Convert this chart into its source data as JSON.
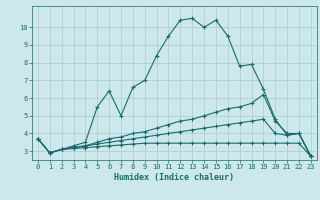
{
  "title": "",
  "xlabel": "Humidex (Indice chaleur)",
  "bg_color": "#cce8ec",
  "grid_color": "#aacccc",
  "line_color": "#1a6b6b",
  "xlim": [
    -0.5,
    23.5
  ],
  "ylim": [
    2.5,
    11.2
  ],
  "yticks": [
    3,
    4,
    5,
    6,
    7,
    8,
    9,
    10
  ],
  "xticks": [
    0,
    1,
    2,
    3,
    4,
    5,
    6,
    7,
    8,
    9,
    10,
    11,
    12,
    13,
    14,
    15,
    16,
    17,
    18,
    19,
    20,
    21,
    22,
    23
  ],
  "series": [
    {
      "x": [
        0,
        1,
        2,
        3,
        4,
        5,
        6,
        7,
        8,
        9,
        10,
        11,
        12,
        13,
        14,
        15,
        16,
        17,
        18,
        19,
        20,
        21,
        22,
        23
      ],
      "y": [
        3.7,
        2.9,
        3.1,
        3.3,
        3.5,
        5.5,
        6.4,
        5.0,
        6.6,
        7.0,
        8.4,
        9.5,
        10.4,
        10.5,
        10.0,
        10.4,
        9.5,
        7.8,
        7.9,
        6.5,
        4.8,
        3.9,
        4.0,
        2.7
      ]
    },
    {
      "x": [
        0,
        1,
        2,
        3,
        4,
        5,
        6,
        7,
        8,
        9,
        10,
        11,
        12,
        13,
        14,
        15,
        16,
        17,
        18,
        19,
        20,
        21,
        22,
        23
      ],
      "y": [
        3.7,
        2.9,
        3.1,
        3.2,
        3.3,
        3.5,
        3.7,
        3.8,
        4.0,
        4.1,
        4.3,
        4.5,
        4.7,
        4.8,
        5.0,
        5.2,
        5.4,
        5.5,
        5.7,
        6.2,
        4.7,
        4.0,
        4.0,
        2.7
      ]
    },
    {
      "x": [
        0,
        1,
        2,
        3,
        4,
        5,
        6,
        7,
        8,
        9,
        10,
        11,
        12,
        13,
        14,
        15,
        16,
        17,
        18,
        19,
        20,
        21,
        22,
        23
      ],
      "y": [
        3.7,
        2.9,
        3.1,
        3.2,
        3.3,
        3.4,
        3.5,
        3.6,
        3.7,
        3.8,
        3.9,
        4.0,
        4.1,
        4.2,
        4.3,
        4.4,
        4.5,
        4.6,
        4.7,
        4.8,
        4.0,
        3.9,
        4.0,
        2.7
      ]
    },
    {
      "x": [
        0,
        1,
        2,
        3,
        4,
        5,
        6,
        7,
        8,
        9,
        10,
        11,
        12,
        13,
        14,
        15,
        16,
        17,
        18,
        19,
        20,
        21,
        22,
        23
      ],
      "y": [
        3.7,
        2.9,
        3.1,
        3.15,
        3.2,
        3.25,
        3.3,
        3.35,
        3.4,
        3.45,
        3.45,
        3.45,
        3.45,
        3.45,
        3.45,
        3.45,
        3.45,
        3.45,
        3.45,
        3.45,
        3.45,
        3.45,
        3.45,
        2.7
      ]
    }
  ]
}
